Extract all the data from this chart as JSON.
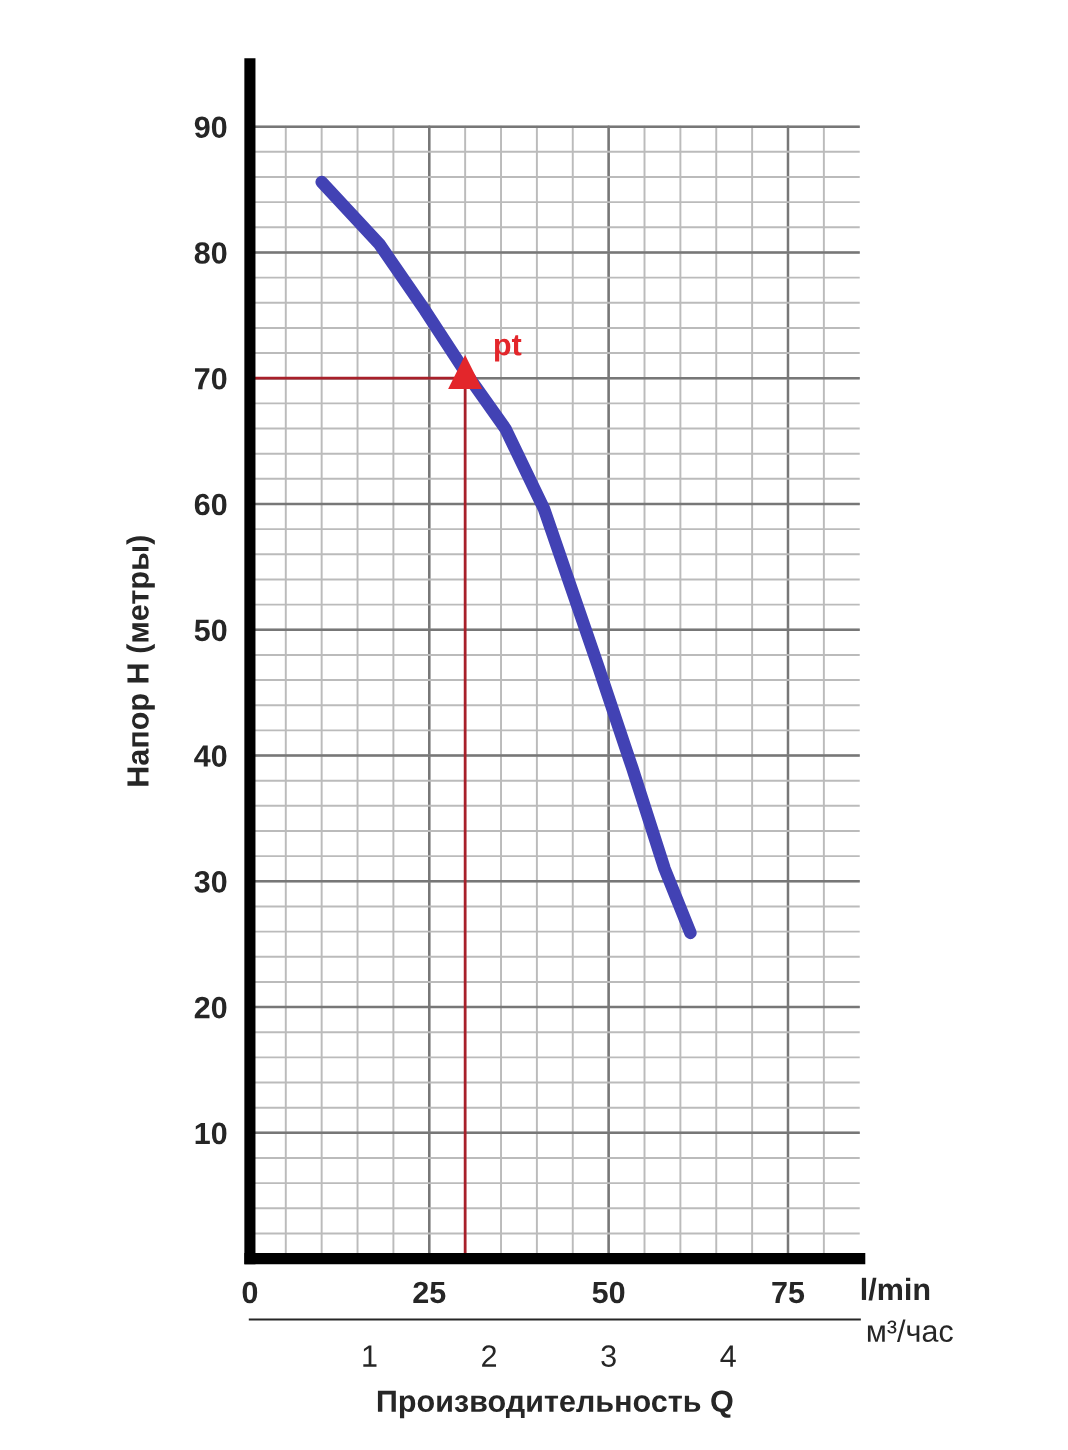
{
  "chart_data": {
    "type": "line",
    "xlabel": "l/min",
    "ylabel": "Напор H (метры)",
    "x2label": "м³/час",
    "annotations": [
      "Производительность Q"
    ],
    "series": [
      {
        "color": "#4242b4",
        "x": [
          10,
          18,
          24.4,
          30,
          35.6,
          41,
          48.6,
          53.3,
          57.8,
          61.4
        ],
        "values": [
          85.6,
          80.7,
          75.4,
          70.5,
          66,
          59.6,
          47,
          39,
          31,
          25.9
        ]
      },
      {
        "type": "scatter",
        "name": "pt",
        "color": "#e3262b",
        "marker": "triangle",
        "x": [
          30
        ],
        "values": [
          70.5
        ]
      }
    ],
    "ref_lines": [
      {
        "axis": "y",
        "value": 70,
        "color": "#a8202a"
      },
      {
        "axis": "x",
        "value": 30,
        "color": "#a8202a"
      }
    ],
    "xlim": [
      0,
      85
    ],
    "xticks": [
      0,
      25,
      50,
      75
    ],
    "ylim": [
      0,
      95
    ],
    "yticks": [
      10,
      20,
      30,
      40,
      50,
      60,
      70,
      80,
      90
    ],
    "x2lim": [
      0,
      5.1
    ],
    "x2ticks": [
      1,
      2,
      3,
      4
    ],
    "grid": true
  }
}
